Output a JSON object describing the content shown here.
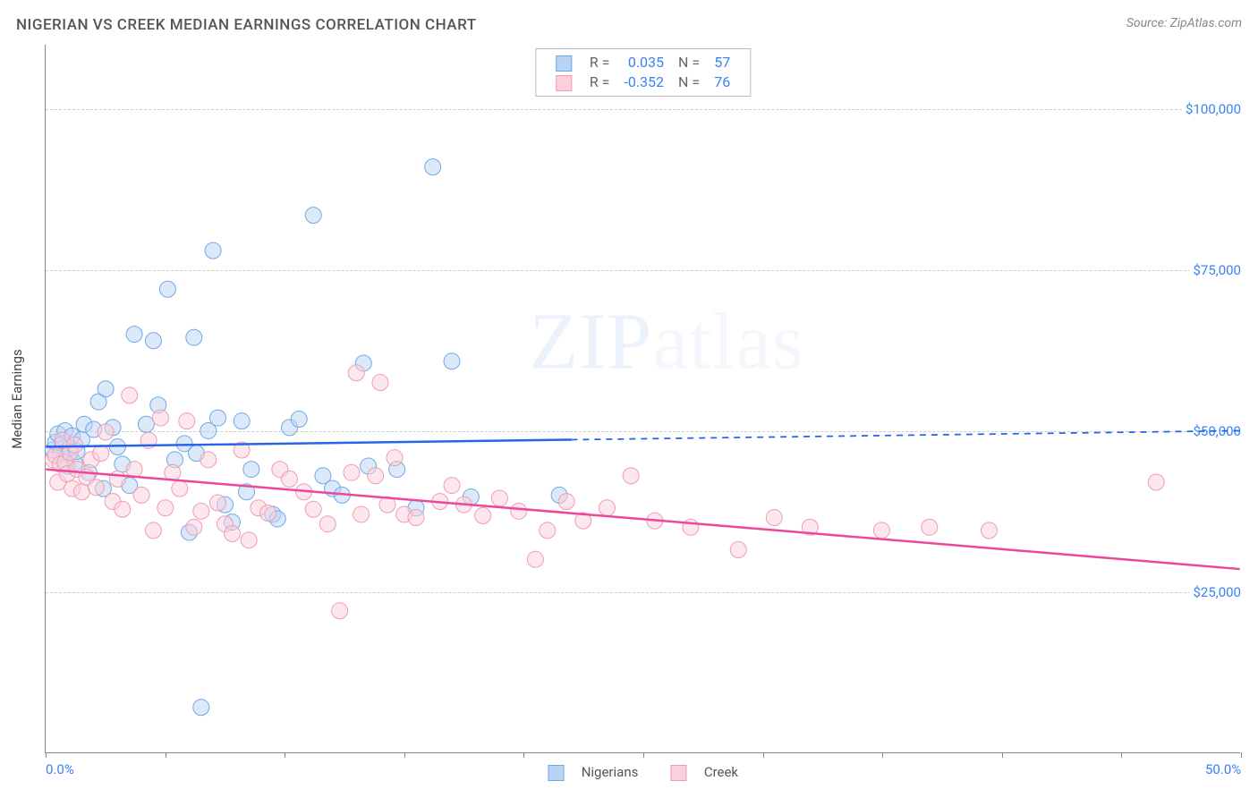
{
  "title": "NIGERIAN VS CREEK MEDIAN EARNINGS CORRELATION CHART",
  "source": "Source: ZipAtlas.com",
  "watermark_main": "ZIP",
  "watermark_light": "atlas",
  "ylabel": "Median Earnings",
  "chart": {
    "type": "scatter",
    "background_color": "#ffffff",
    "grid_color": "#cccccc",
    "axis_color": "#888888",
    "text_color": "#555555",
    "accent_color": "#3b82f6",
    "label_fontsize": 15,
    "title_fontsize": 17,
    "marker_radius": 9,
    "marker_opacity": 0.5,
    "marker_stroke_width": 1,
    "line_width": 2.5,
    "xlim": [
      0,
      50
    ],
    "ylim": [
      0,
      110000
    ],
    "x_ticks": [
      0,
      5,
      10,
      15,
      20,
      25,
      30,
      35,
      40,
      45,
      50
    ],
    "x_tick_labels": {
      "0": "0.0%",
      "50": "50.0%"
    },
    "y_gridlines": [
      25000,
      50000,
      75000,
      100000
    ],
    "y_tick_labels": {
      "25000": "$25,000",
      "50000": "$50,000",
      "75000": "$75,000",
      "100000": "$100,000"
    }
  },
  "series": [
    {
      "name": "Nigerians",
      "fill": "#b9d4f3",
      "stroke": "#6fa8e8",
      "line_color": "#2563eb",
      "R": "0.035",
      "N": "57",
      "trend": {
        "x1": 0,
        "y1": 47500,
        "x2": 50,
        "y2": 50000,
        "solid_end_x": 22
      },
      "points": [
        [
          0.3,
          47000
        ],
        [
          0.4,
          48200
        ],
        [
          0.5,
          49500
        ],
        [
          0.6,
          46500
        ],
        [
          0.7,
          48000
        ],
        [
          0.8,
          50000
        ],
        [
          0.9,
          44500
        ],
        [
          1.0,
          47300
        ],
        [
          1.1,
          49200
        ],
        [
          1.2,
          45000
        ],
        [
          1.3,
          46800
        ],
        [
          1.5,
          48600
        ],
        [
          1.6,
          51000
        ],
        [
          1.8,
          43500
        ],
        [
          2.0,
          50200
        ],
        [
          2.2,
          54500
        ],
        [
          2.4,
          41000
        ],
        [
          2.5,
          56500
        ],
        [
          2.8,
          50500
        ],
        [
          3.0,
          47500
        ],
        [
          3.2,
          44800
        ],
        [
          3.5,
          41500
        ],
        [
          3.7,
          65000
        ],
        [
          4.2,
          51000
        ],
        [
          4.5,
          64000
        ],
        [
          4.7,
          54000
        ],
        [
          5.1,
          72000
        ],
        [
          5.4,
          45500
        ],
        [
          5.8,
          48000
        ],
        [
          6.0,
          34200
        ],
        [
          6.2,
          64500
        ],
        [
          6.3,
          46500
        ],
        [
          6.5,
          7000
        ],
        [
          6.8,
          50000
        ],
        [
          7.0,
          78000
        ],
        [
          7.2,
          52000
        ],
        [
          7.5,
          38500
        ],
        [
          7.8,
          35800
        ],
        [
          8.2,
          51500
        ],
        [
          8.4,
          40500
        ],
        [
          8.6,
          44000
        ],
        [
          9.5,
          37000
        ],
        [
          9.7,
          36300
        ],
        [
          10.2,
          50500
        ],
        [
          10.6,
          51800
        ],
        [
          11.2,
          83500
        ],
        [
          11.6,
          43000
        ],
        [
          12.0,
          41000
        ],
        [
          12.4,
          40000
        ],
        [
          13.3,
          60500
        ],
        [
          13.5,
          44500
        ],
        [
          14.7,
          44000
        ],
        [
          15.5,
          38000
        ],
        [
          16.2,
          91000
        ],
        [
          17.0,
          60800
        ],
        [
          17.8,
          39700
        ],
        [
          21.5,
          40000
        ]
      ]
    },
    {
      "name": "Creek",
      "fill": "#fad0db",
      "stroke": "#f09bb5",
      "line_color": "#ec4899",
      "R": "-0.352",
      "N": "76",
      "trend": {
        "x1": 0,
        "y1": 44000,
        "x2": 50,
        "y2": 28500,
        "solid_end_x": 50
      },
      "points": [
        [
          0.3,
          45500
        ],
        [
          0.4,
          46200
        ],
        [
          0.5,
          42000
        ],
        [
          0.6,
          44800
        ],
        [
          0.7,
          48500
        ],
        [
          0.8,
          45000
        ],
        [
          0.9,
          43300
        ],
        [
          1.0,
          46600
        ],
        [
          1.1,
          41000
        ],
        [
          1.2,
          47800
        ],
        [
          1.3,
          44000
        ],
        [
          1.5,
          40500
        ],
        [
          1.7,
          42800
        ],
        [
          1.9,
          45500
        ],
        [
          2.1,
          41200
        ],
        [
          2.3,
          46500
        ],
        [
          2.5,
          49800
        ],
        [
          2.8,
          39000
        ],
        [
          3.0,
          42500
        ],
        [
          3.2,
          37800
        ],
        [
          3.5,
          55500
        ],
        [
          3.7,
          44000
        ],
        [
          4.0,
          40000
        ],
        [
          4.3,
          48500
        ],
        [
          4.5,
          34500
        ],
        [
          4.8,
          52000
        ],
        [
          5.0,
          38000
        ],
        [
          5.3,
          43500
        ],
        [
          5.6,
          41000
        ],
        [
          5.9,
          51500
        ],
        [
          6.2,
          35000
        ],
        [
          6.5,
          37500
        ],
        [
          6.8,
          45500
        ],
        [
          7.2,
          38800
        ],
        [
          7.5,
          35500
        ],
        [
          7.8,
          34000
        ],
        [
          8.2,
          47000
        ],
        [
          8.5,
          33000
        ],
        [
          8.9,
          38000
        ],
        [
          9.3,
          37200
        ],
        [
          9.8,
          44000
        ],
        [
          10.2,
          42500
        ],
        [
          10.8,
          40500
        ],
        [
          11.2,
          37800
        ],
        [
          11.8,
          35500
        ],
        [
          12.3,
          22000
        ],
        [
          12.8,
          43500
        ],
        [
          13.0,
          59000
        ],
        [
          13.2,
          37000
        ],
        [
          13.8,
          43000
        ],
        [
          14.0,
          57500
        ],
        [
          14.3,
          38500
        ],
        [
          14.6,
          45800
        ],
        [
          15.0,
          37000
        ],
        [
          15.5,
          36500
        ],
        [
          16.5,
          39000
        ],
        [
          17.0,
          41500
        ],
        [
          17.5,
          38500
        ],
        [
          18.3,
          36800
        ],
        [
          19.0,
          39500
        ],
        [
          19.8,
          37500
        ],
        [
          20.5,
          30000
        ],
        [
          21.0,
          34500
        ],
        [
          21.8,
          39000
        ],
        [
          22.5,
          36000
        ],
        [
          23.5,
          38000
        ],
        [
          24.5,
          43000
        ],
        [
          25.5,
          36000
        ],
        [
          27.0,
          35000
        ],
        [
          29.0,
          31500
        ],
        [
          30.5,
          36500
        ],
        [
          32.0,
          35000
        ],
        [
          35.0,
          34500
        ],
        [
          37.0,
          35000
        ],
        [
          39.5,
          34500
        ],
        [
          46.5,
          42000
        ]
      ]
    }
  ],
  "legend_top": {
    "R_label": "R =",
    "N_label": "N ="
  },
  "legend_bottom": {
    "items": [
      "Nigerians",
      "Creek"
    ]
  }
}
